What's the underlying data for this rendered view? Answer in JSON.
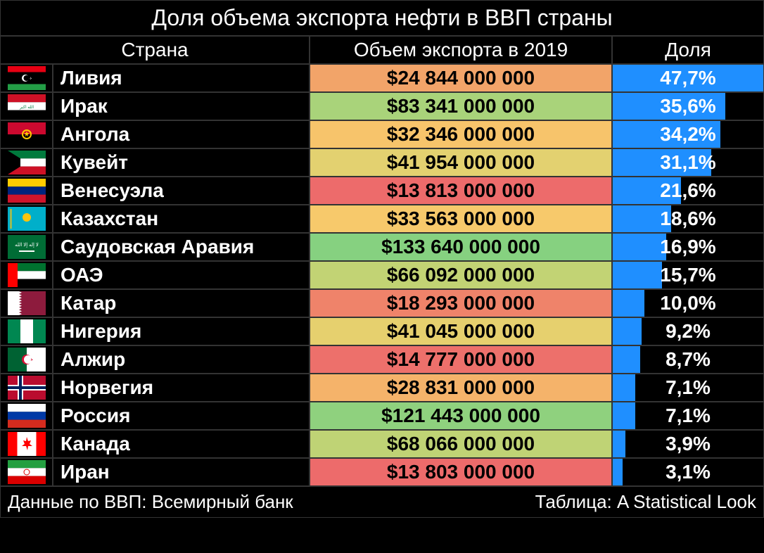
{
  "title": "Доля объема экспорта нефти в ВВП страны",
  "headers": {
    "country": "Страна",
    "export": "Объем экспорта в 2019",
    "share": "Доля"
  },
  "max_share": 47.7,
  "share_bar_color": "#1f8fff",
  "export_color_scale": {
    "low": "#ed6b6b",
    "mid": "#fad26b",
    "high": "#86d180"
  },
  "rows": [
    {
      "country": "Ливия",
      "export": "$24 844 000 000",
      "export_bg": "#f2a469",
      "share_text": "47,7%",
      "share_pct": 100.0,
      "flag": "LY"
    },
    {
      "country": "Ирак",
      "export": "$83 341 000 000",
      "export_bg": "#a9d37a",
      "share_text": "35,6%",
      "share_pct": 74.6,
      "flag": "IQ"
    },
    {
      "country": "Ангола",
      "export": "$32 346 000 000",
      "export_bg": "#f7c46b",
      "share_text": "34,2%",
      "share_pct": 71.7,
      "flag": "AO"
    },
    {
      "country": "Кувейт",
      "export": "$41 954 000 000",
      "export_bg": "#e3d170",
      "share_text": "31,1%",
      "share_pct": 65.2,
      "flag": "KW"
    },
    {
      "country": "Венесуэла",
      "export": "$13 813 000 000",
      "export_bg": "#ed6b6b",
      "share_text": "21,6%",
      "share_pct": 45.3,
      "flag": "VE"
    },
    {
      "country": "Казахстан",
      "export": "$33 563 000 000",
      "export_bg": "#f7c96b",
      "share_text": "18,6%",
      "share_pct": 39.0,
      "flag": "KZ"
    },
    {
      "country": "Саудовская Аравия",
      "export": "$133 640 000 000",
      "export_bg": "#86d180",
      "share_text": "16,9%",
      "share_pct": 35.4,
      "flag": "SA"
    },
    {
      "country": "ОАЭ",
      "export": "$66 092 000 000",
      "export_bg": "#c2d374",
      "share_text": "15,7%",
      "share_pct": 32.9,
      "flag": "AE"
    },
    {
      "country": "Катар",
      "export": "$18 293 000 000",
      "export_bg": "#ef836a",
      "share_text": "10,0%",
      "share_pct": 21.0,
      "flag": "QA"
    },
    {
      "country": "Нигерия",
      "export": "$41 045 000 000",
      "export_bg": "#e6d06e",
      "share_text": "9,2%",
      "share_pct": 19.3,
      "flag": "NG"
    },
    {
      "country": "Алжир",
      "export": "$14 777 000 000",
      "export_bg": "#ed706b",
      "share_text": "8,7%",
      "share_pct": 18.2,
      "flag": "DZ"
    },
    {
      "country": "Норвегия",
      "export": "$28 831 000 000",
      "export_bg": "#f5b36a",
      "share_text": "7,1%",
      "share_pct": 14.9,
      "flag": "NO"
    },
    {
      "country": "Россия",
      "export": "$121 443 000 000",
      "export_bg": "#8fd17e",
      "share_text": "7,1%",
      "share_pct": 14.9,
      "flag": "RU"
    },
    {
      "country": "Канада",
      "export": "$68 066 000 000",
      "export_bg": "#bfd375",
      "share_text": "3,9%",
      "share_pct": 8.2,
      "flag": "CA"
    },
    {
      "country": "Иран",
      "export": "$13 803 000 000",
      "export_bg": "#ed6b6b",
      "share_text": "3,1%",
      "share_pct": 6.5,
      "flag": "IR"
    }
  ],
  "footer": {
    "left": "Данные по ВВП: Всемирный банк",
    "right": "Таблица: A Statistical Look"
  }
}
